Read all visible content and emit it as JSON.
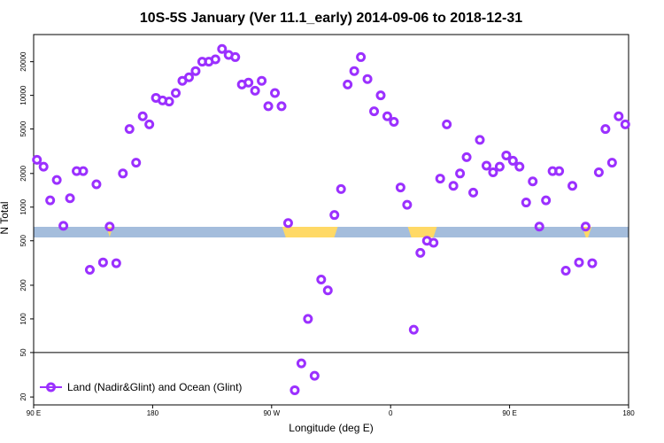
{
  "chart_data": {
    "type": "scatter",
    "title": "10S-5S January (Ver 11.1_early)   2014-09-06 to 2018-12-31",
    "xlabel": "Longitude (deg E)",
    "ylabel": "N Total",
    "x_ticks": [
      {
        "value": 90,
        "label": "90 E"
      },
      {
        "value": 180,
        "label": "180"
      },
      {
        "value": 270,
        "label": "90 W"
      },
      {
        "value": 360,
        "label": "0"
      },
      {
        "value": 450,
        "label": "90 E"
      },
      {
        "value": 540,
        "label": "180"
      }
    ],
    "y_ticks": [
      20,
      50,
      100,
      200,
      500,
      1000,
      2000,
      5000,
      10000,
      20000
    ],
    "y_scale": "log",
    "xlim": [
      90,
      540
    ],
    "ylim": [
      17,
      35000
    ],
    "reference_line": 50,
    "legend": {
      "label": "Land (Nadir&Glint) and Ocean (Glint)",
      "position": "bottom-left"
    },
    "series": [
      {
        "name": "Land (Nadir&Glint) and Ocean (Glint)",
        "color": "#9B30FF",
        "points": [
          [
            92.5,
            2650
          ],
          [
            97.5,
            2300
          ],
          [
            102.5,
            1150
          ],
          [
            107.5,
            1750
          ],
          [
            112.5,
            680
          ],
          [
            117.5,
            1200
          ],
          [
            122.5,
            2100
          ],
          [
            127.5,
            2100
          ],
          [
            132.5,
            275
          ],
          [
            137.5,
            1600
          ],
          [
            142.5,
            320
          ],
          [
            147.5,
            670
          ],
          [
            152.5,
            315
          ],
          [
            157.5,
            2000
          ],
          [
            162.5,
            5000
          ],
          [
            167.5,
            2500
          ],
          [
            172.5,
            6500
          ],
          [
            177.5,
            5500
          ],
          [
            182.5,
            9500
          ],
          [
            187.5,
            9000
          ],
          [
            192.5,
            8800
          ],
          [
            197.5,
            10500
          ],
          [
            202.5,
            13500
          ],
          [
            207.5,
            14500
          ],
          [
            212.5,
            16500
          ],
          [
            217.5,
            20000
          ],
          [
            222.5,
            20000
          ],
          [
            227.5,
            21000
          ],
          [
            232.5,
            26000
          ],
          [
            237.5,
            23000
          ],
          [
            242.5,
            22000
          ],
          [
            247.5,
            12500
          ],
          [
            252.5,
            13000
          ],
          [
            257.5,
            11000
          ],
          [
            262.5,
            13500
          ],
          [
            267.5,
            8000
          ],
          [
            272.5,
            10500
          ],
          [
            277.5,
            8000
          ],
          [
            282.5,
            720
          ],
          [
            287.5,
            23
          ],
          [
            292.5,
            40
          ],
          [
            297.5,
            100
          ],
          [
            302.5,
            31
          ],
          [
            307.5,
            225
          ],
          [
            312.5,
            180
          ],
          [
            317.5,
            850
          ],
          [
            322.5,
            1450
          ],
          [
            327.5,
            12500
          ],
          [
            332.5,
            16500
          ],
          [
            337.5,
            22000
          ],
          [
            342.5,
            14000
          ],
          [
            347.5,
            7200
          ],
          [
            352.5,
            10000
          ],
          [
            357.5,
            6500
          ],
          [
            362.5,
            5800
          ],
          [
            367.5,
            1500
          ],
          [
            372.5,
            1050
          ],
          [
            377.5,
            80
          ],
          [
            382.5,
            390
          ],
          [
            387.5,
            500
          ],
          [
            392.5,
            480
          ],
          [
            397.5,
            1800
          ],
          [
            402.5,
            5500
          ],
          [
            407.5,
            1550
          ],
          [
            412.5,
            2000
          ],
          [
            417.5,
            2800
          ],
          [
            422.5,
            1350
          ],
          [
            427.5,
            4000
          ],
          [
            432.5,
            2350
          ],
          [
            437.5,
            2050
          ],
          [
            442.5,
            2300
          ],
          [
            447.5,
            2900
          ],
          [
            452.5,
            2600
          ],
          [
            457.5,
            2300
          ],
          [
            462.5,
            1100
          ],
          [
            467.5,
            1700
          ],
          [
            472.5,
            670
          ],
          [
            477.5,
            1150
          ],
          [
            482.5,
            2100
          ],
          [
            487.5,
            2100
          ],
          [
            492.5,
            270
          ],
          [
            497.5,
            1550
          ],
          [
            502.5,
            320
          ],
          [
            507.5,
            670
          ],
          [
            512.5,
            315
          ],
          [
            517.5,
            2050
          ],
          [
            522.5,
            5000
          ],
          [
            527.5,
            2500
          ],
          [
            532.5,
            6500
          ],
          [
            537.5,
            5500
          ]
        ]
      }
    ],
    "background_band": {
      "ocean_color": "#A4BDDC",
      "land_color": "#FFD966",
      "land_ranges": [
        [
          145,
          150
        ],
        [
          278,
          320
        ],
        [
          373,
          395
        ],
        [
          505,
          512
        ]
      ]
    }
  }
}
